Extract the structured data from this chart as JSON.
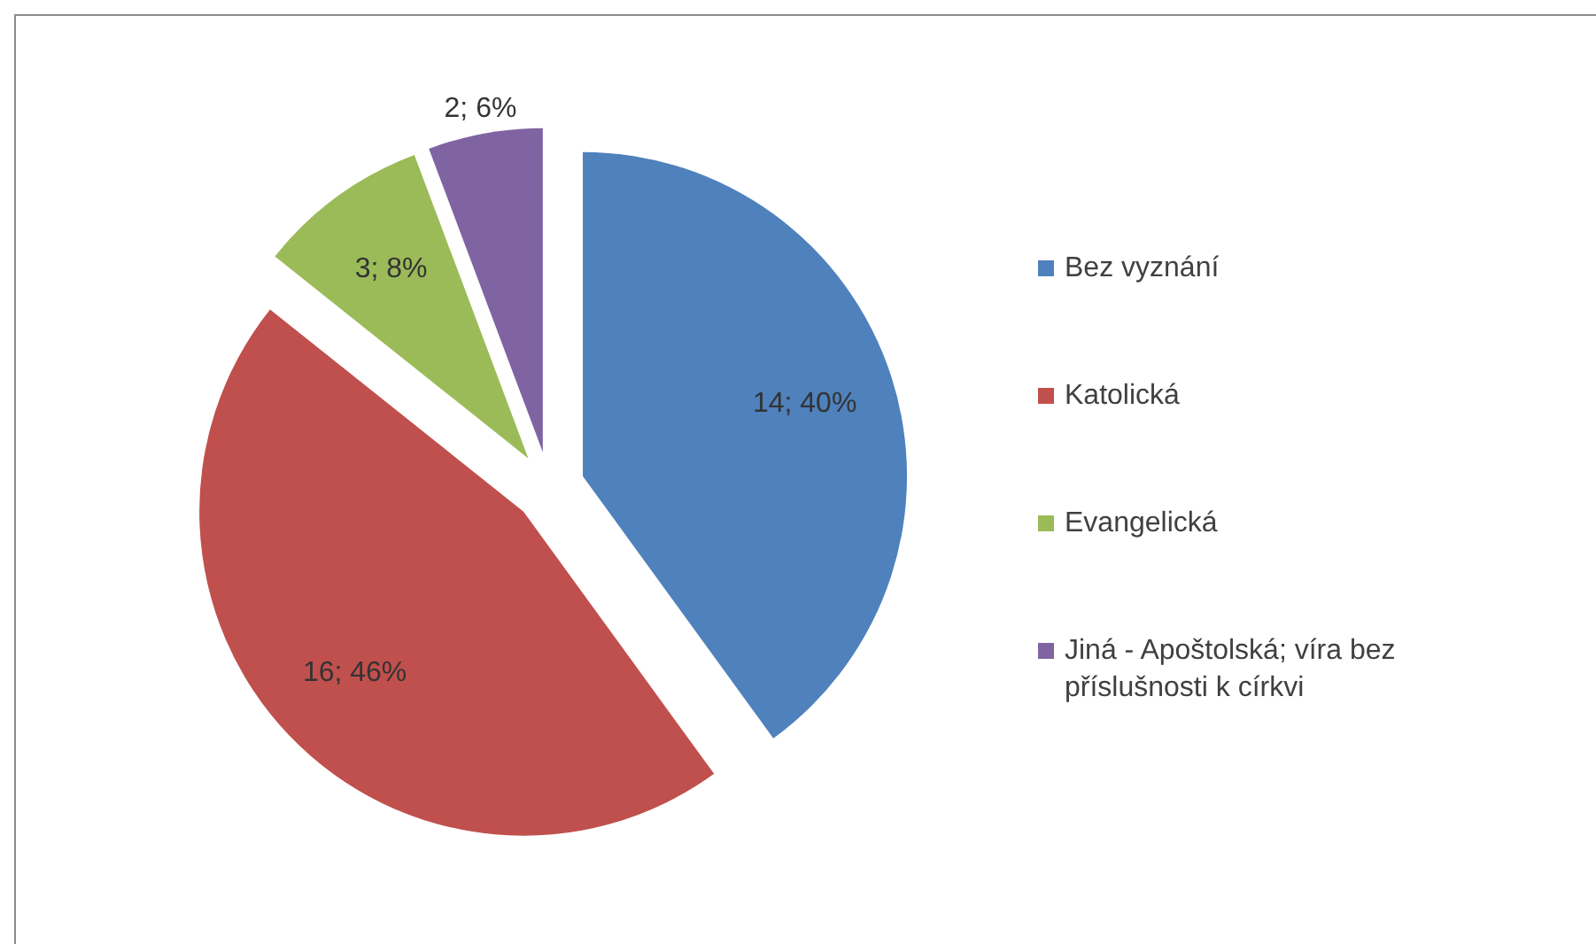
{
  "chart_data": {
    "type": "pie",
    "categories": [
      "Bez vyznání",
      "Katolická",
      "Evangelická",
      "Jiná - Apoštolská; víra bez příslušnosti k církvi"
    ],
    "values": [
      14,
      16,
      3,
      2
    ],
    "value_labels": [
      "14; 40%",
      "16; 46%",
      "3; 8%",
      "2; 6%"
    ],
    "colors": [
      "#4f81bd",
      "#c0504d",
      "#9bbb59",
      "#8064a2"
    ],
    "legend": "right"
  }
}
